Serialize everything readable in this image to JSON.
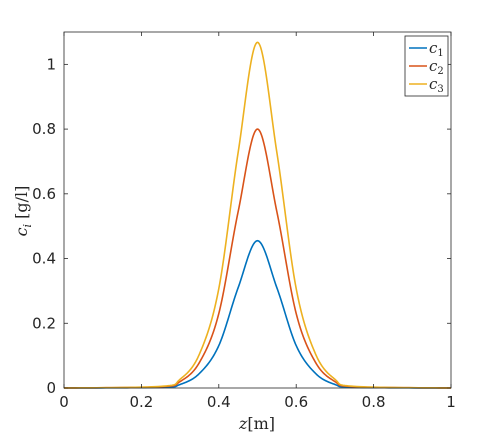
{
  "chart_data": {
    "type": "line",
    "title": "",
    "xlabel": "z[m]",
    "ylabel": "c_i [g/l]",
    "xlim": [
      0,
      1
    ],
    "ylim": [
      0,
      1.1
    ],
    "grid": false,
    "legend_position": "top-right",
    "x_ticks": [
      "0",
      "0.2",
      "0.4",
      "0.6",
      "0.8",
      "1"
    ],
    "y_ticks": [
      "0",
      "0.2",
      "0.4",
      "0.6",
      "0.8",
      "1"
    ],
    "series": [
      {
        "name": "c1",
        "color": "#0072BD",
        "x": [
          0,
          0.25,
          0.3,
          0.35,
          0.4,
          0.45,
          0.5,
          0.55,
          0.6,
          0.65,
          0.7,
          0.75,
          1
        ],
        "y": [
          0,
          0.002,
          0.011,
          0.045,
          0.131,
          0.31,
          0.455,
          0.31,
          0.131,
          0.045,
          0.011,
          0.002,
          0
        ]
      },
      {
        "name": "c2",
        "color": "#D95319",
        "x": [
          0,
          0.25,
          0.3,
          0.35,
          0.4,
          0.45,
          0.5,
          0.55,
          0.6,
          0.65,
          0.7,
          0.75,
          1
        ],
        "y": [
          0,
          0.004,
          0.02,
          0.079,
          0.23,
          0.545,
          0.8,
          0.545,
          0.23,
          0.079,
          0.02,
          0.004,
          0
        ]
      },
      {
        "name": "c3",
        "color": "#EDB120",
        "x": [
          0,
          0.25,
          0.3,
          0.35,
          0.4,
          0.45,
          0.5,
          0.55,
          0.6,
          0.65,
          0.7,
          0.75,
          1
        ],
        "y": [
          0,
          0.005,
          0.027,
          0.105,
          0.307,
          0.728,
          1.068,
          0.728,
          0.307,
          0.105,
          0.027,
          0.005,
          0
        ]
      }
    ]
  }
}
